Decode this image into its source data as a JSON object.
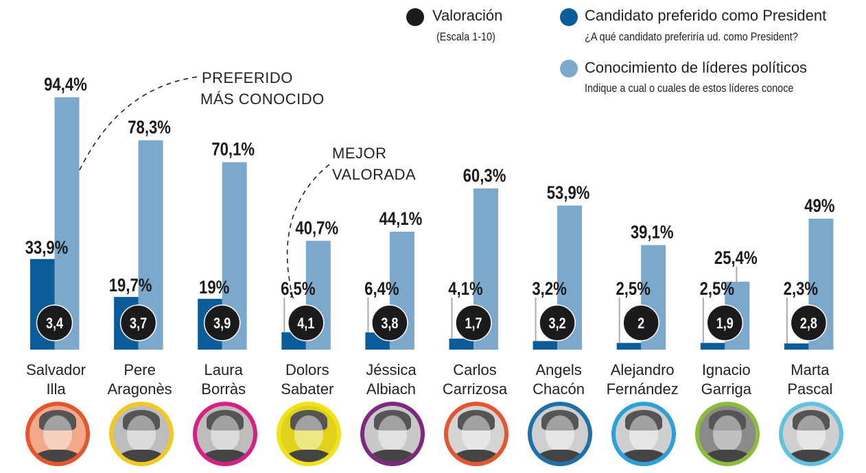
{
  "legend": {
    "valoracion": {
      "title": "Valoración",
      "subtitle": "(Escala 1-10)",
      "color": "#1b1a1c"
    },
    "preferido": {
      "title": "Candidato preferido como President",
      "subtitle": "¿A qué candidato preferiría ud. como President?",
      "color": "#0b5c99"
    },
    "conocimiento": {
      "title": "Conocimiento de líderes políticos",
      "subtitle": "Indique a cual o cuales de estos líderes conoce",
      "color": "#7ca8cc"
    }
  },
  "annotations": {
    "preferido": [
      "PREFERIDO",
      "MÁS CONOCIDO"
    ],
    "valorada": [
      "MEJOR",
      "VALORADA"
    ]
  },
  "chart_data": {
    "type": "bar",
    "title": "",
    "xlabel": "",
    "ylabel": "",
    "ylim": [
      0,
      100
    ],
    "grid": false,
    "legend_position": "top-right",
    "categories": [
      "Salvador Illa",
      "Pere Aragonès",
      "Laura Borràs",
      "Dolors Sabater",
      "Jéssica Albiach",
      "Carlos Carrizosa",
      "Angels Chacón",
      "Alejandro Fernández",
      "Ignacio Garriga",
      "Marta Pascal"
    ],
    "series": [
      {
        "name": "Candidato preferido como President",
        "unit": "%",
        "color": "#0b5c99",
        "values": [
          33.9,
          19.7,
          19.0,
          6.5,
          6.4,
          4.1,
          3.2,
          2.5,
          2.5,
          2.3
        ],
        "labels": [
          "33,9%",
          "19,7%",
          "19%",
          "6,5%",
          "6,4%",
          "4,1%",
          "3,2%",
          "2,5%",
          "2,5%",
          "2,3%"
        ]
      },
      {
        "name": "Conocimiento de líderes políticos",
        "unit": "%",
        "color": "#7ca8cc",
        "values": [
          94.4,
          78.3,
          70.1,
          40.7,
          44.1,
          60.3,
          53.9,
          39.1,
          25.4,
          49.0
        ],
        "labels": [
          "94,4%",
          "78,3%",
          "70,1%",
          "40,7%",
          "44,1%",
          "60,3%",
          "53,9%",
          "39,1%",
          "25,4%",
          "49%"
        ]
      },
      {
        "name": "Valoración",
        "unit": "escala 1-10",
        "color": "#1b1a1c",
        "values": [
          3.4,
          3.7,
          3.9,
          4.1,
          3.8,
          1.7,
          3.2,
          2.0,
          1.9,
          2.8
        ],
        "labels": [
          "3,4",
          "3,7",
          "3,9",
          "4,1",
          "3,8",
          "1,7",
          "3,2",
          "2",
          "1,9",
          "2,8"
        ]
      }
    ]
  },
  "candidates": [
    {
      "first": "Salvador",
      "last": "Illa",
      "ring_color": "#e4572e",
      "photo_tint": "#f2a98a"
    },
    {
      "first": "Pere",
      "last": "Aragonès",
      "ring_color": "#f2c91f",
      "photo_tint": "#bdbdbd"
    },
    {
      "first": "Laura",
      "last": "Borràs",
      "ring_color": "#d81f84",
      "photo_tint": "#bdbdbd"
    },
    {
      "first": "Dolors",
      "last": "Sabater",
      "ring_color": "#f0e21b",
      "photo_tint": "#e0d21a"
    },
    {
      "first": "Jéssica",
      "last": "Albiach",
      "ring_color": "#7d2a7e",
      "photo_tint": "#c8c8c8"
    },
    {
      "first": "Carlos",
      "last": "Carrizosa",
      "ring_color": "#e4572e",
      "photo_tint": "#d4d4d4"
    },
    {
      "first": "Angels",
      "last": "Chacón",
      "ring_color": "#1f6fa8",
      "photo_tint": "#cfcfcf"
    },
    {
      "first": "Alejandro",
      "last": "Fernández",
      "ring_color": "#2aa1dc",
      "photo_tint": "#cfcfcf"
    },
    {
      "first": "Ignacio",
      "last": "Garriga",
      "ring_color": "#8dbb3a",
      "photo_tint": "#8a8a8a"
    },
    {
      "first": "Marta",
      "last": "Pascal",
      "ring_color": "#5fc3dd",
      "photo_tint": "#cfcfcf"
    }
  ]
}
